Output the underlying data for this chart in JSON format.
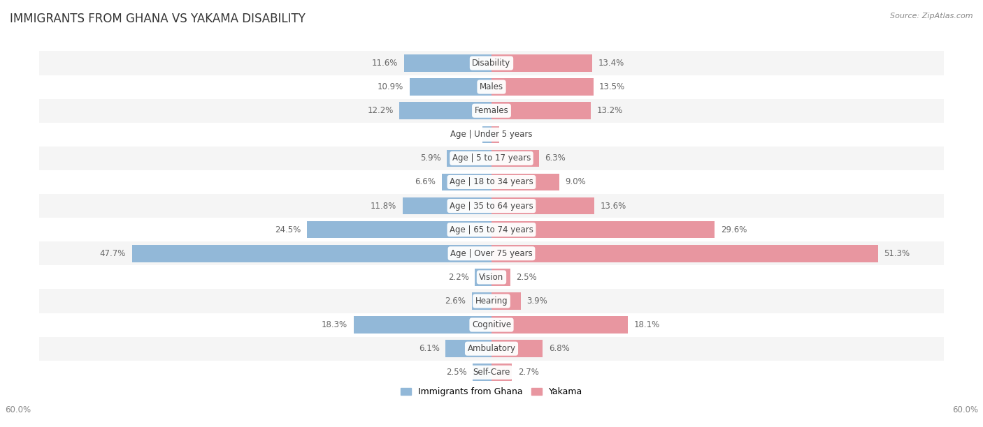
{
  "title": "IMMIGRANTS FROM GHANA VS YAKAMA DISABILITY",
  "source": "Source: ZipAtlas.com",
  "categories": [
    "Disability",
    "Males",
    "Females",
    "Age | Under 5 years",
    "Age | 5 to 17 years",
    "Age | 18 to 34 years",
    "Age | 35 to 64 years",
    "Age | 65 to 74 years",
    "Age | Over 75 years",
    "Vision",
    "Hearing",
    "Cognitive",
    "Ambulatory",
    "Self-Care"
  ],
  "left_values": [
    11.6,
    10.9,
    12.2,
    1.2,
    5.9,
    6.6,
    11.8,
    24.5,
    47.7,
    2.2,
    2.6,
    18.3,
    6.1,
    2.5
  ],
  "right_values": [
    13.4,
    13.5,
    13.2,
    1.0,
    6.3,
    9.0,
    13.6,
    29.6,
    51.3,
    2.5,
    3.9,
    18.1,
    6.8,
    2.7
  ],
  "left_color": "#92b8d8",
  "right_color": "#e896a0",
  "left_label": "Immigrants from Ghana",
  "right_label": "Yakama",
  "axis_limit": 60.0,
  "background_color": "#ffffff",
  "row_bg_odd": "#f5f5f5",
  "row_bg_even": "#ffffff",
  "bar_height": 0.72,
  "title_fontsize": 12,
  "cat_fontsize": 8.5,
  "val_fontsize": 8.5,
  "tick_fontsize": 8.5,
  "source_fontsize": 8,
  "legend_fontsize": 9
}
